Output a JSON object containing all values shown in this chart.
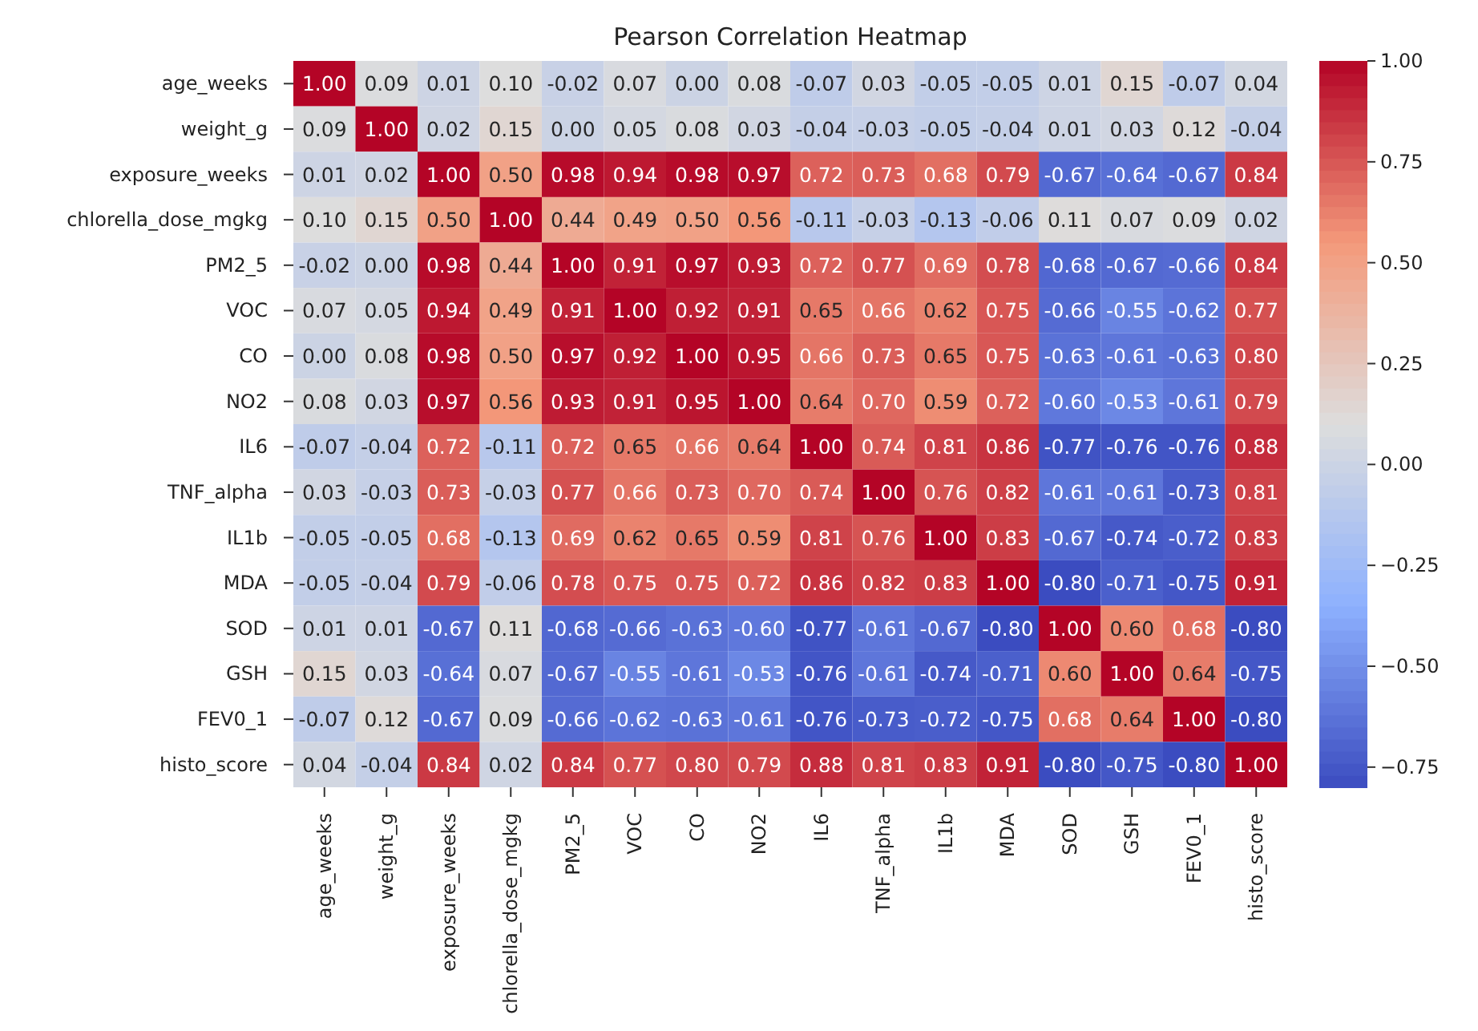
{
  "chart_data": {
    "type": "heatmap",
    "title": "Pearson Correlation Heatmap",
    "categories": [
      "age_weeks",
      "weight_g",
      "exposure_weeks",
      "chlorella_dose_mgkg",
      "PM2_5",
      "VOC",
      "CO",
      "NO2",
      "IL6",
      "TNF_alpha",
      "IL1b",
      "MDA",
      "SOD",
      "GSH",
      "FEV0_1",
      "histo_score"
    ],
    "y_categories": [
      "age_weeks",
      "weight_g",
      "exposure_weeks",
      "chlorella_dose_mgkg",
      "PM2_5",
      "VOC",
      "CO",
      "NO2",
      "IL6",
      "TNF_alpha",
      "IL1b",
      "MDA",
      "SOD",
      "GSH",
      "FEV0_1",
      "histo_score"
    ],
    "cells": [
      [
        1.0,
        0.09,
        0.01,
        0.1,
        -0.02,
        0.07,
        0.0,
        0.08,
        -0.07,
        0.03,
        -0.05,
        -0.05,
        0.01,
        0.15,
        -0.07,
        0.04
      ],
      [
        0.09,
        1.0,
        0.02,
        0.15,
        0.0,
        0.05,
        0.08,
        0.03,
        -0.04,
        -0.03,
        -0.05,
        -0.04,
        0.01,
        0.03,
        0.12,
        -0.04
      ],
      [
        0.01,
        0.02,
        1.0,
        0.5,
        0.98,
        0.94,
        0.98,
        0.97,
        0.72,
        0.73,
        0.68,
        0.79,
        -0.67,
        -0.64,
        -0.67,
        0.84
      ],
      [
        0.1,
        0.15,
        0.5,
        1.0,
        0.44,
        0.49,
        0.5,
        0.56,
        -0.11,
        -0.03,
        -0.13,
        -0.06,
        0.11,
        0.07,
        0.09,
        0.02
      ],
      [
        -0.02,
        0.0,
        0.98,
        0.44,
        1.0,
        0.91,
        0.97,
        0.93,
        0.72,
        0.77,
        0.69,
        0.78,
        -0.68,
        -0.67,
        -0.66,
        0.84
      ],
      [
        0.07,
        0.05,
        0.94,
        0.49,
        0.91,
        1.0,
        0.92,
        0.91,
        0.65,
        0.66,
        0.62,
        0.75,
        -0.66,
        -0.55,
        -0.62,
        0.77
      ],
      [
        0.0,
        0.08,
        0.98,
        0.5,
        0.97,
        0.92,
        1.0,
        0.95,
        0.66,
        0.73,
        0.65,
        0.75,
        -0.63,
        -0.61,
        -0.63,
        0.8
      ],
      [
        0.08,
        0.03,
        0.97,
        0.56,
        0.93,
        0.91,
        0.95,
        1.0,
        0.64,
        0.7,
        0.59,
        0.72,
        -0.6,
        -0.53,
        -0.61,
        0.79
      ],
      [
        -0.07,
        -0.04,
        0.72,
        -0.11,
        0.72,
        0.65,
        0.66,
        0.64,
        1.0,
        0.74,
        0.81,
        0.86,
        -0.77,
        -0.76,
        -0.76,
        0.88
      ],
      [
        0.03,
        -0.03,
        0.73,
        -0.03,
        0.77,
        0.66,
        0.73,
        0.7,
        0.74,
        1.0,
        0.76,
        0.82,
        -0.61,
        -0.61,
        -0.73,
        0.81
      ],
      [
        -0.05,
        -0.05,
        0.68,
        -0.13,
        0.69,
        0.62,
        0.65,
        0.59,
        0.81,
        0.76,
        1.0,
        0.83,
        -0.67,
        -0.74,
        -0.72,
        0.83
      ],
      [
        -0.05,
        -0.04,
        0.79,
        -0.06,
        0.78,
        0.75,
        0.75,
        0.72,
        0.86,
        0.82,
        0.83,
        1.0,
        -0.8,
        -0.71,
        -0.75,
        0.91
      ],
      [
        0.01,
        0.01,
        -0.67,
        0.11,
        -0.68,
        -0.66,
        -0.63,
        -0.6,
        -0.77,
        -0.61,
        -0.67,
        -0.8,
        1.0,
        0.6,
        0.68,
        -0.8
      ],
      [
        0.15,
        0.03,
        -0.64,
        0.07,
        -0.67,
        -0.55,
        -0.61,
        -0.53,
        -0.76,
        -0.61,
        -0.74,
        -0.71,
        0.6,
        1.0,
        0.64,
        -0.75
      ],
      [
        -0.07,
        0.12,
        -0.67,
        0.09,
        -0.66,
        -0.62,
        -0.63,
        -0.61,
        -0.76,
        -0.73,
        -0.72,
        -0.75,
        0.68,
        0.64,
        1.0,
        -0.8
      ],
      [
        0.04,
        -0.04,
        0.84,
        0.02,
        0.84,
        0.77,
        0.8,
        0.79,
        0.88,
        0.81,
        0.83,
        0.91,
        -0.8,
        -0.75,
        -0.8,
        1.0
      ]
    ],
    "cell_labels": [
      [
        "1.00",
        "0.09",
        "0.01",
        "0.10",
        "-0.02",
        "0.07",
        "0.00",
        "0.08",
        "-0.07",
        "0.03",
        "-0.05",
        "-0.05",
        "0.01",
        "0.15",
        "-0.07",
        "0.04"
      ],
      [
        "0.09",
        "1.00",
        "0.02",
        "0.15",
        "0.00",
        "0.05",
        "0.08",
        "0.03",
        "-0.04",
        "-0.03",
        "-0.05",
        "-0.04",
        "0.01",
        "0.03",
        "0.12",
        "-0.04"
      ],
      [
        "0.01",
        "0.02",
        "1.00",
        "0.50",
        "0.98",
        "0.94",
        "0.98",
        "0.97",
        "0.72",
        "0.73",
        "0.68",
        "0.79",
        "-0.67",
        "-0.64",
        "-0.67",
        "0.84"
      ],
      [
        "0.10",
        "0.15",
        "0.50",
        "1.00",
        "0.44",
        "0.49",
        "0.50",
        "0.56",
        "-0.11",
        "-0.03",
        "-0.13",
        "-0.06",
        "0.11",
        "0.07",
        "0.09",
        "0.02"
      ],
      [
        "-0.02",
        "0.00",
        "0.98",
        "0.44",
        "1.00",
        "0.91",
        "0.97",
        "0.93",
        "0.72",
        "0.77",
        "0.69",
        "0.78",
        "-0.68",
        "-0.67",
        "-0.66",
        "0.84"
      ],
      [
        "0.07",
        "0.05",
        "0.94",
        "0.49",
        "0.91",
        "1.00",
        "0.92",
        "0.91",
        "0.65",
        "0.66",
        "0.62",
        "0.75",
        "-0.66",
        "-0.55",
        "-0.62",
        "0.77"
      ],
      [
        "0.00",
        "0.08",
        "0.98",
        "0.50",
        "0.97",
        "0.92",
        "1.00",
        "0.95",
        "0.66",
        "0.73",
        "0.65",
        "0.75",
        "-0.63",
        "-0.61",
        "-0.63",
        "0.80"
      ],
      [
        "0.08",
        "0.03",
        "0.97",
        "0.56",
        "0.93",
        "0.91",
        "0.95",
        "1.00",
        "0.64",
        "0.70",
        "0.59",
        "0.72",
        "-0.60",
        "-0.53",
        "-0.61",
        "0.79"
      ],
      [
        "-0.07",
        "-0.04",
        "0.72",
        "-0.11",
        "0.72",
        "0.65",
        "0.66",
        "0.64",
        "1.00",
        "0.74",
        "0.81",
        "0.86",
        "-0.77",
        "-0.76",
        "-0.76",
        "0.88"
      ],
      [
        "0.03",
        "-0.03",
        "0.73",
        "-0.03",
        "0.77",
        "0.66",
        "0.73",
        "0.70",
        "0.74",
        "1.00",
        "0.76",
        "0.82",
        "-0.61",
        "-0.61",
        "-0.73",
        "0.81"
      ],
      [
        "-0.05",
        "-0.05",
        "0.68",
        "-0.13",
        "0.69",
        "0.62",
        "0.65",
        "0.59",
        "0.81",
        "0.76",
        "1.00",
        "0.83",
        "-0.67",
        "-0.74",
        "-0.72",
        "0.83"
      ],
      [
        "-0.05",
        "-0.04",
        "0.79",
        "-0.06",
        "0.78",
        "0.75",
        "0.75",
        "0.72",
        "0.86",
        "0.82",
        "0.83",
        "1.00",
        "-0.80",
        "-0.71",
        "-0.75",
        "0.91"
      ],
      [
        "0.01",
        "0.01",
        "-0.67",
        "0.11",
        "-0.68",
        "-0.66",
        "-0.63",
        "-0.60",
        "-0.77",
        "-0.61",
        "-0.67",
        "-0.80",
        "1.00",
        "0.60",
        "0.68",
        "-0.80"
      ],
      [
        "0.15",
        "0.03",
        "-0.64",
        "0.07",
        "-0.67",
        "-0.55",
        "-0.61",
        "-0.53",
        "-0.76",
        "-0.61",
        "-0.74",
        "-0.71",
        "0.60",
        "1.00",
        "0.64",
        "-0.75"
      ],
      [
        "-0.07",
        "0.12",
        "-0.67",
        "0.09",
        "-0.66",
        "-0.62",
        "-0.63",
        "-0.61",
        "-0.76",
        "-0.73",
        "-0.72",
        "-0.75",
        "0.68",
        "0.64",
        "1.00",
        "-0.80"
      ],
      [
        "0.04",
        "-0.04",
        "0.84",
        "0.02",
        "0.84",
        "0.77",
        "0.80",
        "0.79",
        "0.88",
        "0.81",
        "0.83",
        "0.91",
        "-0.80",
        "-0.75",
        "-0.80",
        "1.00"
      ]
    ],
    "clim": [
      -0.8,
      1.0
    ],
    "cticks": [
      {
        "value": -0.75,
        "label": "−0.75"
      },
      {
        "value": -0.5,
        "label": "−0.50"
      },
      {
        "value": -0.25,
        "label": "−0.25"
      },
      {
        "value": 0,
        "label": "0.00"
      },
      {
        "value": 0.25,
        "label": "0.25"
      },
      {
        "value": 0.5,
        "label": "0.50"
      },
      {
        "value": 0.75,
        "label": "0.75"
      },
      {
        "value": 1,
        "label": "1.00"
      }
    ]
  }
}
